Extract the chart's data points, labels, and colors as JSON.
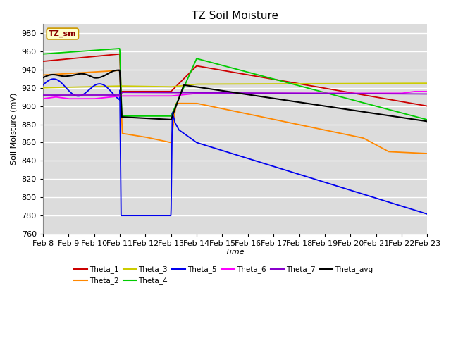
{
  "title": "TZ Soil Moisture",
  "xlabel": "Time",
  "ylabel": "Soil Moisture (mV)",
  "legend_label": "TZ_sm",
  "ylim": [
    760,
    990
  ],
  "yticks": [
    760,
    780,
    800,
    820,
    840,
    860,
    880,
    900,
    920,
    940,
    960,
    980
  ],
  "date_labels": [
    "Feb 8",
    "Feb 9",
    "Feb 10",
    "Feb 11",
    "Feb 12",
    "Feb 13",
    "Feb 14",
    "Feb 15",
    "Feb 16",
    "Feb 17",
    "Feb 18",
    "Feb 19",
    "Feb 20",
    "Feb 21",
    "Feb 22",
    "Feb 23"
  ],
  "series_colors": {
    "Theta_1": "#cc0000",
    "Theta_2": "#ff8800",
    "Theta_3": "#cccc00",
    "Theta_4": "#00cc00",
    "Theta_5": "#0000ee",
    "Theta_6": "#ff00ff",
    "Theta_7": "#8800cc",
    "Theta_avg": "#000000"
  },
  "background_color": "#dcdcdc",
  "grid_color": "#f0f0f0",
  "plot_bg": "#dcdcdc"
}
